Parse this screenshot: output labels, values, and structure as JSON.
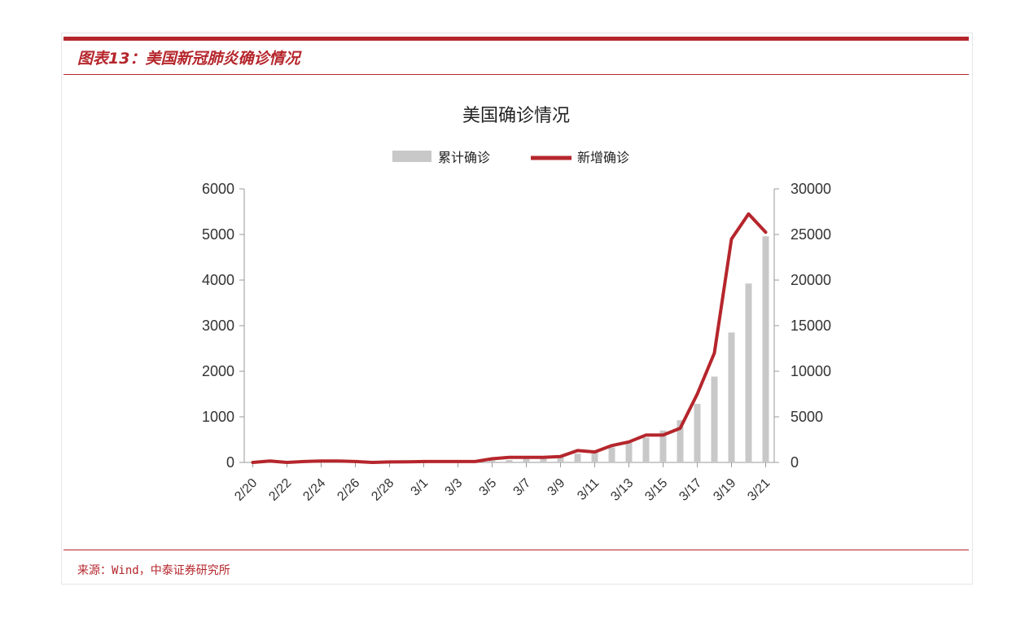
{
  "figure": {
    "caption": "图表13：美国新冠肺炎确诊情况",
    "source": "来源：Wind，中泰证券研究所"
  },
  "colors": {
    "brand": "#b5262c",
    "bar": "#c8c8c8",
    "line": "#b5262c"
  },
  "chart_data": {
    "type": "bar",
    "title": "美国确诊情况",
    "categories": [
      "2/20",
      "2/21",
      "2/22",
      "2/23",
      "2/24",
      "2/25",
      "2/26",
      "2/27",
      "2/28",
      "2/29",
      "3/1",
      "3/2",
      "3/3",
      "3/4",
      "3/5",
      "3/6",
      "3/7",
      "3/8",
      "3/9",
      "3/10",
      "3/11",
      "3/12",
      "3/13",
      "3/14",
      "3/15",
      "3/16",
      "3/17",
      "3/18",
      "3/19",
      "3/20",
      "3/21"
    ],
    "x_tick_labels": [
      "2/20",
      "2/22",
      "2/24",
      "2/26",
      "2/28",
      "3/1",
      "3/3",
      "3/5",
      "3/7",
      "3/9",
      "3/11",
      "3/13",
      "3/15",
      "3/17",
      "3/19",
      "3/21"
    ],
    "series": [
      {
        "name": "累计确诊",
        "type": "bar",
        "axis": "right",
        "values": [
          13,
          15,
          15,
          34,
          35,
          35,
          57,
          60,
          62,
          68,
          74,
          98,
          118,
          149,
          217,
          262,
          402,
          518,
          583,
          959,
          1281,
          1663,
          2179,
          2726,
          3499,
          4632,
          6421,
          9415,
          14250,
          19624,
          24800
        ]
      },
      {
        "name": "新增确诊",
        "type": "line",
        "axis": "left",
        "values": [
          0,
          30,
          0,
          20,
          30,
          30,
          20,
          0,
          10,
          15,
          20,
          20,
          20,
          20,
          80,
          110,
          110,
          110,
          130,
          260,
          230,
          370,
          450,
          600,
          600,
          750,
          1500,
          2400,
          4900,
          5450,
          5050
        ]
      }
    ],
    "left_axis": {
      "ylim": [
        0,
        6000
      ],
      "ticks": [
        "0",
        "1000",
        "2000",
        "3000",
        "4000",
        "5000",
        "6000"
      ]
    },
    "right_axis": {
      "ylim": [
        0,
        30000
      ],
      "ticks": [
        "0",
        "5000",
        "10000",
        "15000",
        "20000",
        "25000",
        "30000"
      ]
    },
    "legend": "top-center",
    "grid": false
  }
}
